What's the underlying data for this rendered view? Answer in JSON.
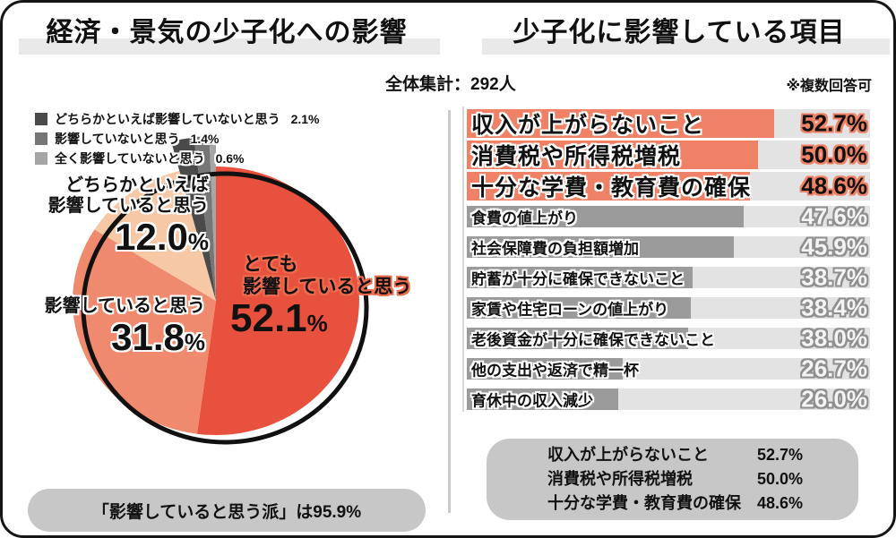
{
  "meta": {
    "total_label": "全体集計：292人",
    "note_label": "※複数回答可",
    "pct_sign": "%"
  },
  "left_panel": {
    "title": "経済・景気の少子化への影響",
    "summary_box": "「影響していると思う派」は95.9%"
  },
  "right_panel": {
    "title": "少子化に影響している項目",
    "summary_box": {
      "rows": [
        {
          "label": "収入が上がらないこと",
          "value": "52.7%"
        },
        {
          "label": "消費税や所得税増税",
          "value": "50.0%"
        },
        {
          "label": "十分な学費・教育費の確保",
          "value": "48.6%"
        }
      ]
    }
  },
  "colors": {
    "accent_red": "#E8513D",
    "accent_salmon": "#F08A6E",
    "accent_peach": "#F6C8A6",
    "gray_dark": "#4A4A4A",
    "gray_mid": "#767676",
    "gray_light": "#A5A5A5",
    "bar_highlight": "#EF8266",
    "bar_normal": "#9B9B9B",
    "bar_track": "#E3E3E3",
    "box_gray": "#C7C7C7",
    "title_band": "#E9E9E9",
    "divider": "#CACACA",
    "ring": "#111111"
  },
  "chart_data": [
    {
      "type": "pie",
      "title": "経済・景気の少子化への影響",
      "direction": "clockwise_from_top",
      "slices": [
        {
          "label": "とても影響していると思う",
          "label_lines": [
            "とても",
            "影響していると思う"
          ],
          "value": 52.1,
          "color": "#E8513D"
        },
        {
          "label": "影響していると思う",
          "label_lines": [
            "影響していると思う"
          ],
          "value": 31.8,
          "color": "#F08A6E"
        },
        {
          "label": "どちらかといえば影響していると思う",
          "label_lines": [
            "どちらかといえば",
            "影響していると思う"
          ],
          "value": 12.0,
          "color": "#F6C8A6"
        },
        {
          "label": "どちらかといえば影響していないと思う",
          "value": 2.1,
          "color": "#4A4A4A"
        },
        {
          "label": "影響していないと思う",
          "value": 1.4,
          "color": "#767676"
        },
        {
          "label": "全く影響していないと思う",
          "value": 0.6,
          "color": "#A5A5A5"
        }
      ],
      "annotation": "「影響していると思う派」は95.9%"
    },
    {
      "type": "bar",
      "orientation": "horizontal",
      "title": "少子化に影響している項目",
      "note": "※複数回答可",
      "sample_label": "全体集計：292人",
      "categories": [
        "収入が上がらないこと",
        "消費税や所得税増税",
        "十分な学費・教育費の確保",
        "食費の値上がり",
        "社会保障費の負担額増加",
        "貯蓄が十分に確保できないこと",
        "家賃や住宅ローンの値上がり",
        "老後資金が十分に確保できないこと",
        "他の支出や返済で精一杯",
        "育休中の収入減少"
      ],
      "values": [
        52.7,
        50.0,
        48.6,
        47.6,
        45.9,
        38.7,
        38.4,
        38.0,
        26.7,
        26.0
      ],
      "highlight_count": 3,
      "xlim": [
        0,
        65
      ],
      "grid": false,
      "legend": "none"
    }
  ]
}
